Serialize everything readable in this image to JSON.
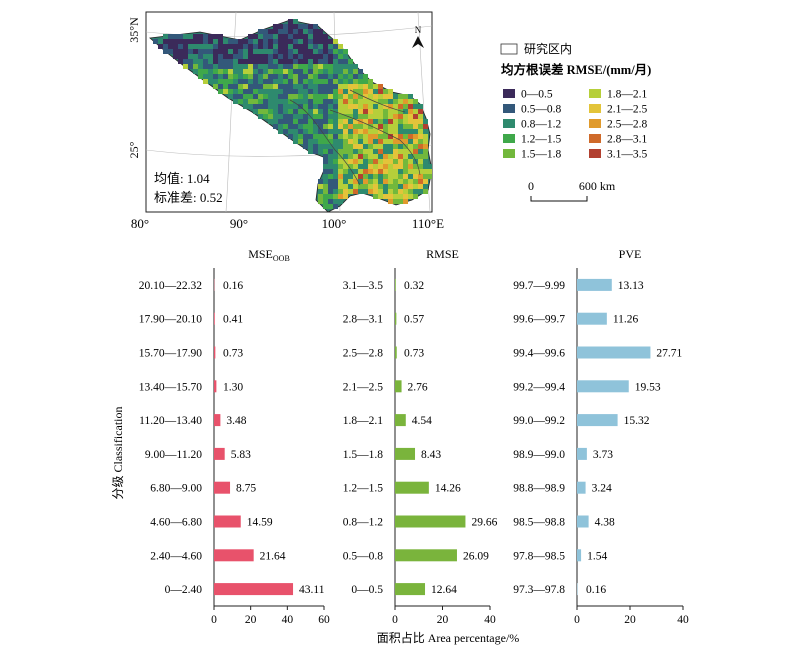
{
  "map": {
    "lat_labels": [
      "35°N",
      "25°"
    ],
    "lon_labels": [
      "80°",
      "90°",
      "100°",
      "110°E"
    ],
    "north_label": "N",
    "stats": [
      "均值: 1.04",
      "标准差: 0.52"
    ],
    "legend_area_label": "研究区内",
    "legend_title": "均方根误差 RMSE/(mm/月)",
    "legend_items": [
      {
        "label": "0—0.5",
        "color": "#3b2a5a"
      },
      {
        "label": "0.5—0.8",
        "color": "#33587a"
      },
      {
        "label": "0.8—1.2",
        "color": "#2e8a6e"
      },
      {
        "label": "1.2—1.5",
        "color": "#3fa84a"
      },
      {
        "label": "1.5—1.8",
        "color": "#72b83c"
      },
      {
        "label": "1.8—2.1",
        "color": "#b6cf3a"
      },
      {
        "label": "2.1—2.5",
        "color": "#e3c43a"
      },
      {
        "label": "2.5—2.8",
        "color": "#e09a2c"
      },
      {
        "label": "2.8—3.1",
        "color": "#cf6a2a"
      },
      {
        "label": "3.1—3.5",
        "color": "#b24030"
      }
    ],
    "scale_bar": {
      "start": "0",
      "end": "600 km"
    }
  },
  "chart_data": [
    {
      "type": "bar",
      "orientation": "horizontal",
      "title": "MSEOOB",
      "categories": [
        "0—2.40",
        "2.40—4.60",
        "4.60—6.80",
        "6.80—9.00",
        "9.00—11.20",
        "11.20—13.40",
        "13.40—15.70",
        "15.70—17.90",
        "17.90—20.10",
        "20.10—22.32"
      ],
      "values": [
        43.11,
        21.64,
        14.59,
        8.75,
        5.83,
        3.48,
        1.3,
        0.73,
        0.41,
        0.16
      ],
      "value_labels": [
        "43.11",
        "21.64",
        "14.59",
        "8.75",
        "5.83",
        "3.48",
        "1.30",
        "0.73",
        "0.41",
        "0.16"
      ],
      "xlim": [
        0,
        60
      ],
      "xticks": [
        "0",
        "20",
        "40",
        "60"
      ],
      "color": "#e8526b"
    },
    {
      "type": "bar",
      "orientation": "horizontal",
      "title": "RMSE",
      "categories": [
        "0—0.5",
        "0.5—0.8",
        "0.8—1.2",
        "1.2—1.5",
        "1.5—1.8",
        "1.8—2.1",
        "2.1—2.5",
        "2.5—2.8",
        "2.8—3.1",
        "3.1—3.5"
      ],
      "values": [
        12.64,
        26.09,
        29.66,
        14.26,
        8.43,
        4.54,
        2.76,
        0.73,
        0.57,
        0.32
      ],
      "value_labels": [
        "12.64",
        "26.09",
        "29.66",
        "14.26",
        "8.43",
        "4.54",
        "2.76",
        "0.73",
        "0.57",
        "0.32"
      ],
      "xlim": [
        0,
        40
      ],
      "xticks": [
        "0",
        "20",
        "40"
      ],
      "color": "#7ab43c"
    },
    {
      "type": "bar",
      "orientation": "horizontal",
      "title": "PVE",
      "categories": [
        "97.3—97.8",
        "97.8—98.5",
        "98.5—98.8",
        "98.8—98.9",
        "98.9—99.0",
        "99.0—99.2",
        "99.2—99.4",
        "99.4—99.6",
        "99.6—99.7",
        "99.7—9.99"
      ],
      "values": [
        0.16,
        1.54,
        4.38,
        3.24,
        3.73,
        15.32,
        19.53,
        27.71,
        11.26,
        13.13
      ],
      "value_labels": [
        "0.16",
        "1.54",
        "4.38",
        "3.24",
        "3.73",
        "15.32",
        "19.53",
        "27.71",
        "11.26",
        "13.13"
      ],
      "xlim": [
        0,
        40
      ],
      "xticks": [
        "0",
        "20",
        "40"
      ],
      "color": "#8fc3da"
    }
  ],
  "axes": {
    "ylabel": "分级 Classification",
    "xlabel": "面积占比 Area percentage/%"
  }
}
